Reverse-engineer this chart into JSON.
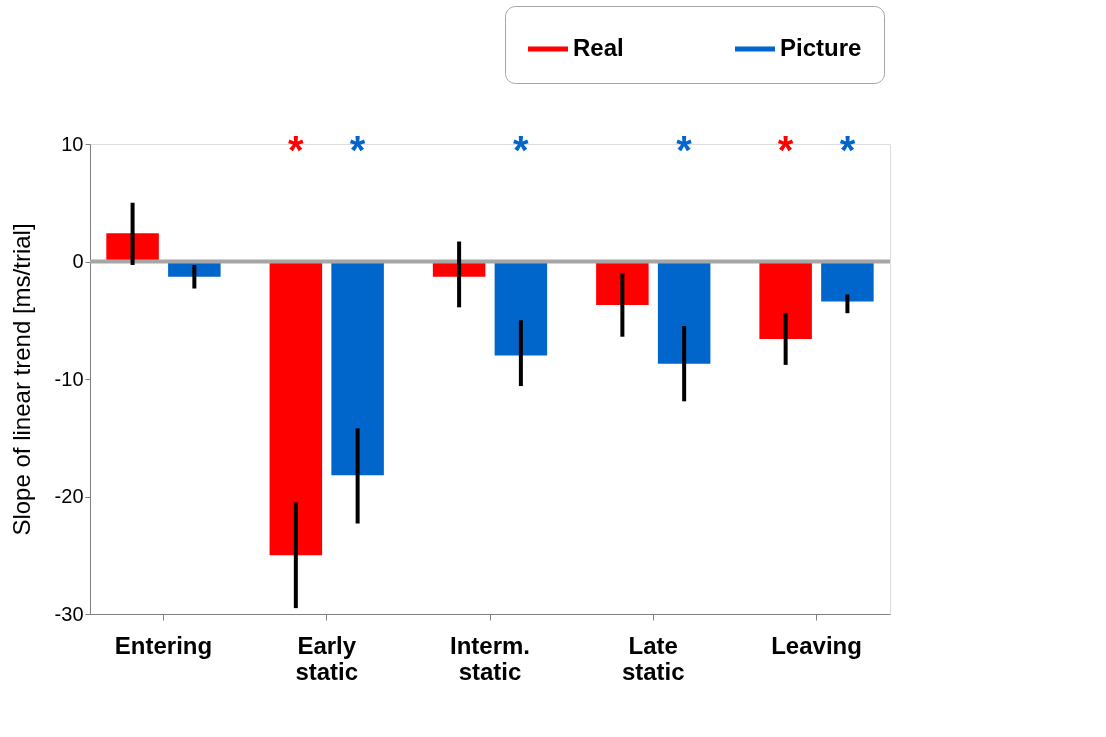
{
  "chart_data": {
    "type": "bar",
    "ylabel": "Slope of linear trend [ms/trial]",
    "categories": [
      "Entering",
      "Early static",
      "Interm. static",
      "Late static",
      "Leaving"
    ],
    "series": [
      {
        "name": "Real",
        "color": "#ff0000",
        "values": [
          2.4,
          -25.0,
          -1.3,
          -3.7,
          -6.6
        ],
        "errors": [
          [
            -0.3,
            5.0
          ],
          [
            -29.5,
            -20.5
          ],
          [
            -3.9,
            1.7
          ],
          [
            -6.4,
            -1.0
          ],
          [
            -8.8,
            -4.4
          ]
        ],
        "value_labels": [
          null,
          "*",
          null,
          null,
          "*"
        ]
      },
      {
        "name": "Picture",
        "color": "#0066cc",
        "values": [
          -1.3,
          -18.2,
          -8.0,
          -8.7,
          -3.4
        ],
        "errors": [
          [
            -2.3,
            -0.3
          ],
          [
            -22.3,
            -14.2
          ],
          [
            -10.6,
            -5.0
          ],
          [
            -11.9,
            -5.5
          ],
          [
            -4.4,
            -2.8
          ]
        ],
        "value_labels": [
          null,
          "*",
          "*",
          "*",
          "*"
        ]
      }
    ],
    "ylim": [
      -30,
      10
    ],
    "yticks": [
      -30,
      -20,
      -10,
      0,
      10
    ],
    "ref_lines": [
      {
        "axis": "y",
        "value": 0,
        "color": "#a6a6a6"
      }
    ],
    "grid": false,
    "legend": "top right"
  }
}
